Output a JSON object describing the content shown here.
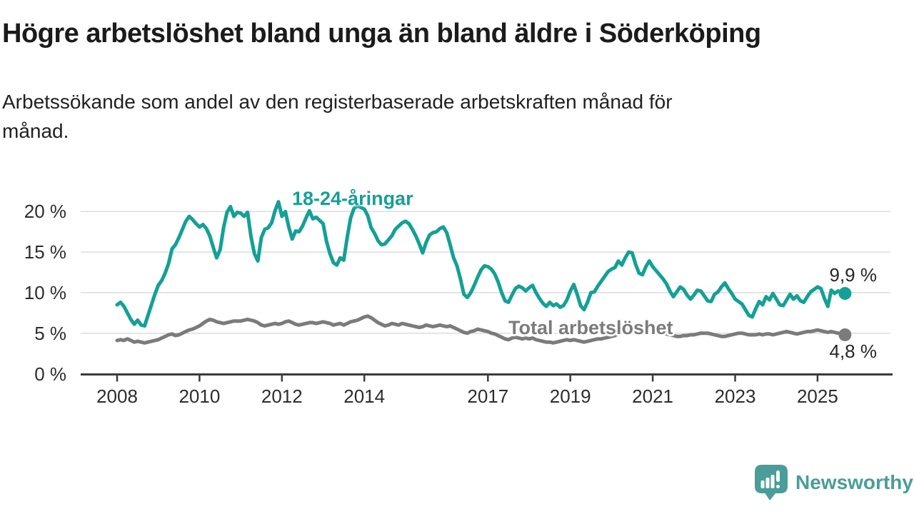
{
  "header": {
    "title": "Högre arbetslöshet bland unga än bland äldre i Söderköping",
    "subtitle_line1": "Arbetssökande som andel av den registerbaserade arbetskraften månad för",
    "subtitle_line2": "månad."
  },
  "footer": {
    "brand": "Newsworthy",
    "logo_icon": "newsworthy-speech-bubble-chart-icon"
  },
  "chart_data": {
    "type": "line",
    "unit": "%",
    "frequency": "monthly",
    "x_start": "2008-01",
    "x_end": "2025-09",
    "grid": "horizontal",
    "legend_position": "inline-labels",
    "ylim": [
      0,
      21.5
    ],
    "colors": {
      "young": "#14a096",
      "total": "#7b7b7b",
      "axis": "#3b3b3b",
      "gridline": "#dcdcdc"
    },
    "y_axis": {
      "ticks": [
        {
          "value": 20,
          "label": "20 %"
        },
        {
          "value": 15,
          "label": "15 %"
        },
        {
          "value": 10,
          "label": "10 %"
        },
        {
          "value": 5,
          "label": "5 %"
        },
        {
          "value": 0,
          "label": "0 %"
        }
      ]
    },
    "x_axis": {
      "ticks": [
        {
          "year": 2008,
          "label": "2008"
        },
        {
          "year": 2010,
          "label": "2010"
        },
        {
          "year": 2012,
          "label": "2012"
        },
        {
          "year": 2014,
          "label": "2014"
        },
        {
          "year": 2017,
          "label": "2017"
        },
        {
          "year": 2019,
          "label": "2019"
        },
        {
          "year": 2021,
          "label": "2021"
        },
        {
          "year": 2023,
          "label": "2023"
        },
        {
          "year": 2025,
          "label": "2025"
        }
      ]
    },
    "series": [
      {
        "name": "18-24-åringar",
        "color": "#14a096",
        "end_label": "9,9 %",
        "values": [
          8.5,
          8.8,
          8.3,
          7.5,
          6.7,
          6.1,
          6.6,
          6.0,
          5.9,
          7.2,
          8.5,
          9.8,
          10.9,
          11.5,
          12.4,
          13.6,
          15.4,
          15.9,
          16.8,
          17.8,
          18.8,
          19.4,
          19.0,
          18.5,
          18.1,
          18.4,
          17.9,
          17.0,
          15.6,
          14.3,
          15.3,
          18.0,
          19.9,
          20.6,
          19.4,
          19.9,
          19.8,
          19.4,
          19.9,
          16.9,
          14.8,
          13.9,
          16.8,
          17.8,
          18.0,
          18.6,
          20.1,
          21.2,
          19.4,
          20.0,
          18.1,
          16.6,
          17.6,
          17.5,
          18.2,
          19.2,
          20.1,
          19.1,
          19.3,
          18.9,
          18.5,
          16.3,
          14.8,
          13.7,
          13.4,
          14.3,
          14.0,
          16.8,
          19.2,
          20.4,
          20.7,
          20.5,
          20.3,
          19.5,
          18.0,
          17.3,
          16.4,
          15.9,
          16.0,
          16.5,
          17.0,
          17.8,
          18.2,
          18.6,
          18.8,
          18.5,
          17.8,
          17.0,
          16.0,
          14.9,
          16.2,
          17.1,
          17.4,
          17.5,
          17.9,
          18.1,
          17.4,
          15.9,
          14.3,
          13.3,
          11.7,
          9.8,
          9.4,
          10.0,
          10.9,
          11.9,
          12.8,
          13.3,
          13.2,
          12.9,
          12.3,
          11.3,
          10.0,
          9.0,
          8.8,
          9.7,
          10.5,
          10.8,
          10.6,
          10.2,
          10.6,
          10.9,
          10.0,
          9.3,
          8.7,
          8.3,
          8.8,
          8.4,
          8.6,
          8.2,
          8.4,
          9.1,
          10.2,
          11.0,
          9.8,
          8.4,
          7.9,
          8.8,
          10.0,
          10.1,
          10.8,
          11.4,
          12.0,
          12.6,
          12.9,
          13.1,
          13.9,
          13.4,
          14.3,
          15.0,
          14.9,
          13.5,
          12.4,
          12.2,
          13.2,
          13.9,
          13.2,
          12.7,
          12.2,
          11.7,
          11.1,
          10.2,
          9.5,
          10.1,
          10.7,
          10.4,
          9.7,
          9.2,
          9.7,
          10.3,
          10.2,
          9.6,
          9.0,
          8.9,
          9.8,
          10.1,
          10.7,
          11.2,
          10.5,
          9.9,
          9.2,
          8.9,
          8.6,
          7.9,
          7.2,
          7.0,
          8.0,
          8.9,
          8.5,
          9.5,
          9.1,
          9.9,
          9.2,
          8.5,
          8.4,
          9.1,
          9.8,
          9.2,
          9.6,
          9.0,
          8.8,
          9.5,
          10.1,
          10.4,
          10.7,
          10.5,
          9.3,
          8.3,
          10.3,
          9.9,
          10.2,
          10.0,
          9.9
        ]
      },
      {
        "name": "Total arbetslöshet",
        "color": "#7b7b7b",
        "end_label": "4,8 %",
        "values": [
          4.1,
          4.2,
          4.1,
          4.3,
          4.1,
          3.9,
          4.0,
          3.9,
          3.8,
          3.9,
          4.0,
          4.1,
          4.2,
          4.4,
          4.6,
          4.8,
          4.9,
          4.7,
          4.8,
          5.0,
          5.2,
          5.4,
          5.5,
          5.7,
          5.9,
          6.2,
          6.5,
          6.7,
          6.6,
          6.4,
          6.3,
          6.2,
          6.3,
          6.4,
          6.5,
          6.5,
          6.5,
          6.6,
          6.7,
          6.6,
          6.5,
          6.3,
          6.0,
          5.9,
          6.0,
          6.1,
          6.2,
          6.1,
          6.2,
          6.4,
          6.5,
          6.3,
          6.1,
          6.0,
          6.1,
          6.2,
          6.3,
          6.3,
          6.2,
          6.3,
          6.4,
          6.3,
          6.2,
          6.0,
          6.1,
          6.2,
          6.0,
          6.2,
          6.4,
          6.5,
          6.6,
          6.8,
          7.0,
          7.1,
          6.9,
          6.6,
          6.3,
          6.1,
          5.9,
          6.0,
          6.2,
          6.1,
          6.0,
          6.2,
          6.1,
          6.0,
          5.9,
          5.8,
          5.7,
          5.8,
          6.0,
          5.9,
          5.8,
          5.9,
          6.0,
          5.9,
          5.8,
          5.9,
          5.7,
          5.5,
          5.3,
          5.1,
          5.0,
          5.2,
          5.3,
          5.5,
          5.4,
          5.3,
          5.2,
          5.0,
          4.9,
          4.7,
          4.5,
          4.3,
          4.2,
          4.4,
          4.5,
          4.4,
          4.3,
          4.4,
          4.3,
          4.4,
          4.2,
          4.1,
          4.0,
          3.9,
          3.9,
          3.8,
          3.9,
          4.0,
          4.1,
          4.2,
          4.1,
          4.2,
          4.1,
          4.0,
          3.9,
          4.0,
          4.1,
          4.2,
          4.3,
          4.3,
          4.4,
          4.5,
          4.6,
          4.7,
          5.0,
          5.3,
          5.5,
          5.6,
          5.5,
          5.4,
          5.3,
          5.3,
          5.4,
          5.3,
          5.3,
          5.2,
          5.1,
          5.0,
          4.9,
          4.8,
          4.7,
          4.6,
          4.6,
          4.7,
          4.7,
          4.8,
          4.8,
          4.9,
          5.0,
          5.0,
          5.0,
          4.9,
          4.8,
          4.7,
          4.6,
          4.6,
          4.7,
          4.8,
          4.9,
          5.0,
          5.0,
          4.9,
          4.8,
          4.8,
          4.8,
          4.9,
          4.8,
          4.9,
          4.9,
          4.8,
          4.9,
          5.0,
          5.1,
          5.2,
          5.1,
          5.0,
          4.9,
          5.0,
          5.1,
          5.2,
          5.2,
          5.3,
          5.4,
          5.3,
          5.2,
          5.1,
          5.2,
          5.1,
          5.0,
          4.9,
          4.8
        ]
      }
    ]
  }
}
